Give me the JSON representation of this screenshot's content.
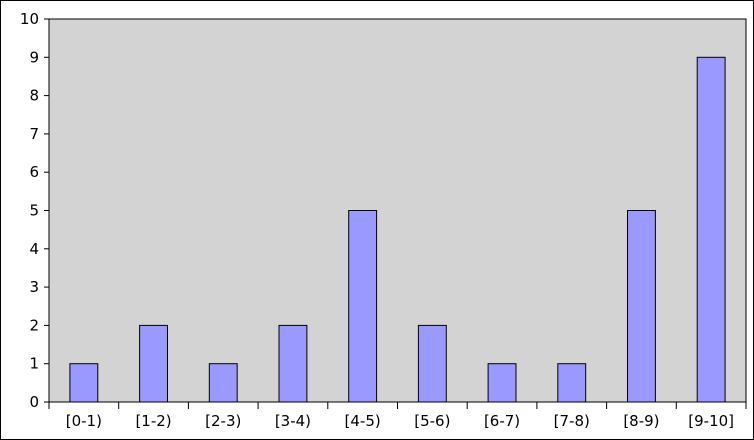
{
  "chart_data": {
    "type": "bar",
    "categories": [
      "[0-1)",
      "[1-2)",
      "[2-3)",
      "[3-4)",
      "[4-5)",
      "[5-6)",
      "[6-7)",
      "[7-8)",
      "[8-9)",
      "[9-10]"
    ],
    "values": [
      1,
      2,
      1,
      2,
      5,
      2,
      1,
      1,
      5,
      9
    ],
    "title": "",
    "xlabel": "",
    "ylabel": "",
    "ylim": [
      0,
      10
    ],
    "yticks": [
      0,
      1,
      2,
      3,
      4,
      5,
      6,
      7,
      8,
      9,
      10
    ],
    "grid": false,
    "legend": "none",
    "colors": {
      "plot_background": "#d3d3d3",
      "bar_fill": "#9999ff",
      "bar_stroke": "#000000",
      "axis": "#000000",
      "page_background": "#ffffff"
    }
  }
}
